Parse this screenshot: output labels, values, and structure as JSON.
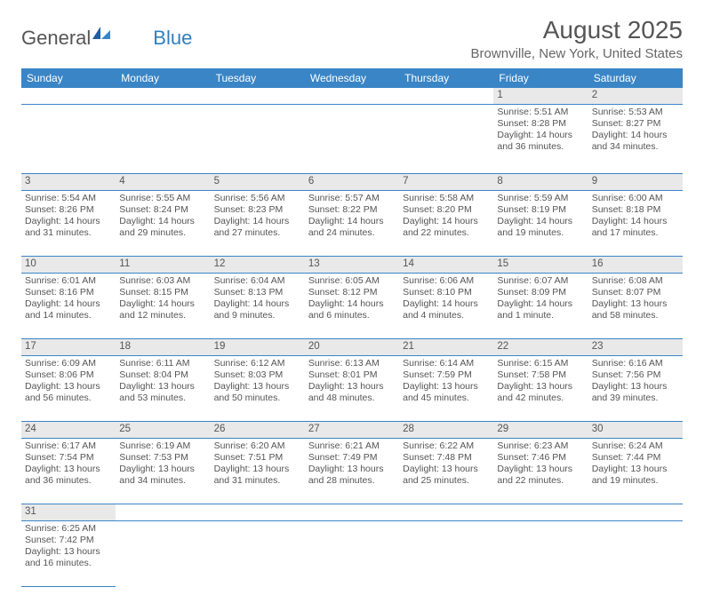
{
  "logo": {
    "part1": "General",
    "part2": "Blue"
  },
  "title": "August 2025",
  "subtitle": "Brownville, New York, United States",
  "day_headers": [
    "Sunday",
    "Monday",
    "Tuesday",
    "Wednesday",
    "Thursday",
    "Friday",
    "Saturday"
  ],
  "colors": {
    "header_bg": "#3a85c6",
    "header_fg": "#ffffff",
    "daynum_bg": "#e9e9e9",
    "border": "#3a85c6",
    "text": "#555555",
    "logo_accent": "#2f7fbf"
  },
  "typography": {
    "title_fontsize": 28,
    "subtitle_fontsize": 15,
    "header_fontsize": 12,
    "cell_fontsize": 10.5
  },
  "weeks": [
    [
      null,
      null,
      null,
      null,
      null,
      {
        "n": "1",
        "sunrise": "Sunrise: 5:51 AM",
        "sunset": "Sunset: 8:28 PM",
        "daylight": "Daylight: 14 hours and 36 minutes."
      },
      {
        "n": "2",
        "sunrise": "Sunrise: 5:53 AM",
        "sunset": "Sunset: 8:27 PM",
        "daylight": "Daylight: 14 hours and 34 minutes."
      }
    ],
    [
      {
        "n": "3",
        "sunrise": "Sunrise: 5:54 AM",
        "sunset": "Sunset: 8:26 PM",
        "daylight": "Daylight: 14 hours and 31 minutes."
      },
      {
        "n": "4",
        "sunrise": "Sunrise: 5:55 AM",
        "sunset": "Sunset: 8:24 PM",
        "daylight": "Daylight: 14 hours and 29 minutes."
      },
      {
        "n": "5",
        "sunrise": "Sunrise: 5:56 AM",
        "sunset": "Sunset: 8:23 PM",
        "daylight": "Daylight: 14 hours and 27 minutes."
      },
      {
        "n": "6",
        "sunrise": "Sunrise: 5:57 AM",
        "sunset": "Sunset: 8:22 PM",
        "daylight": "Daylight: 14 hours and 24 minutes."
      },
      {
        "n": "7",
        "sunrise": "Sunrise: 5:58 AM",
        "sunset": "Sunset: 8:20 PM",
        "daylight": "Daylight: 14 hours and 22 minutes."
      },
      {
        "n": "8",
        "sunrise": "Sunrise: 5:59 AM",
        "sunset": "Sunset: 8:19 PM",
        "daylight": "Daylight: 14 hours and 19 minutes."
      },
      {
        "n": "9",
        "sunrise": "Sunrise: 6:00 AM",
        "sunset": "Sunset: 8:18 PM",
        "daylight": "Daylight: 14 hours and 17 minutes."
      }
    ],
    [
      {
        "n": "10",
        "sunrise": "Sunrise: 6:01 AM",
        "sunset": "Sunset: 8:16 PM",
        "daylight": "Daylight: 14 hours and 14 minutes."
      },
      {
        "n": "11",
        "sunrise": "Sunrise: 6:03 AM",
        "sunset": "Sunset: 8:15 PM",
        "daylight": "Daylight: 14 hours and 12 minutes."
      },
      {
        "n": "12",
        "sunrise": "Sunrise: 6:04 AM",
        "sunset": "Sunset: 8:13 PM",
        "daylight": "Daylight: 14 hours and 9 minutes."
      },
      {
        "n": "13",
        "sunrise": "Sunrise: 6:05 AM",
        "sunset": "Sunset: 8:12 PM",
        "daylight": "Daylight: 14 hours and 6 minutes."
      },
      {
        "n": "14",
        "sunrise": "Sunrise: 6:06 AM",
        "sunset": "Sunset: 8:10 PM",
        "daylight": "Daylight: 14 hours and 4 minutes."
      },
      {
        "n": "15",
        "sunrise": "Sunrise: 6:07 AM",
        "sunset": "Sunset: 8:09 PM",
        "daylight": "Daylight: 14 hours and 1 minute."
      },
      {
        "n": "16",
        "sunrise": "Sunrise: 6:08 AM",
        "sunset": "Sunset: 8:07 PM",
        "daylight": "Daylight: 13 hours and 58 minutes."
      }
    ],
    [
      {
        "n": "17",
        "sunrise": "Sunrise: 6:09 AM",
        "sunset": "Sunset: 8:06 PM",
        "daylight": "Daylight: 13 hours and 56 minutes."
      },
      {
        "n": "18",
        "sunrise": "Sunrise: 6:11 AM",
        "sunset": "Sunset: 8:04 PM",
        "daylight": "Daylight: 13 hours and 53 minutes."
      },
      {
        "n": "19",
        "sunrise": "Sunrise: 6:12 AM",
        "sunset": "Sunset: 8:03 PM",
        "daylight": "Daylight: 13 hours and 50 minutes."
      },
      {
        "n": "20",
        "sunrise": "Sunrise: 6:13 AM",
        "sunset": "Sunset: 8:01 PM",
        "daylight": "Daylight: 13 hours and 48 minutes."
      },
      {
        "n": "21",
        "sunrise": "Sunrise: 6:14 AM",
        "sunset": "Sunset: 7:59 PM",
        "daylight": "Daylight: 13 hours and 45 minutes."
      },
      {
        "n": "22",
        "sunrise": "Sunrise: 6:15 AM",
        "sunset": "Sunset: 7:58 PM",
        "daylight": "Daylight: 13 hours and 42 minutes."
      },
      {
        "n": "23",
        "sunrise": "Sunrise: 6:16 AM",
        "sunset": "Sunset: 7:56 PM",
        "daylight": "Daylight: 13 hours and 39 minutes."
      }
    ],
    [
      {
        "n": "24",
        "sunrise": "Sunrise: 6:17 AM",
        "sunset": "Sunset: 7:54 PM",
        "daylight": "Daylight: 13 hours and 36 minutes."
      },
      {
        "n": "25",
        "sunrise": "Sunrise: 6:19 AM",
        "sunset": "Sunset: 7:53 PM",
        "daylight": "Daylight: 13 hours and 34 minutes."
      },
      {
        "n": "26",
        "sunrise": "Sunrise: 6:20 AM",
        "sunset": "Sunset: 7:51 PM",
        "daylight": "Daylight: 13 hours and 31 minutes."
      },
      {
        "n": "27",
        "sunrise": "Sunrise: 6:21 AM",
        "sunset": "Sunset: 7:49 PM",
        "daylight": "Daylight: 13 hours and 28 minutes."
      },
      {
        "n": "28",
        "sunrise": "Sunrise: 6:22 AM",
        "sunset": "Sunset: 7:48 PM",
        "daylight": "Daylight: 13 hours and 25 minutes."
      },
      {
        "n": "29",
        "sunrise": "Sunrise: 6:23 AM",
        "sunset": "Sunset: 7:46 PM",
        "daylight": "Daylight: 13 hours and 22 minutes."
      },
      {
        "n": "30",
        "sunrise": "Sunrise: 6:24 AM",
        "sunset": "Sunset: 7:44 PM",
        "daylight": "Daylight: 13 hours and 19 minutes."
      }
    ],
    [
      {
        "n": "31",
        "sunrise": "Sunrise: 6:25 AM",
        "sunset": "Sunset: 7:42 PM",
        "daylight": "Daylight: 13 hours and 16 minutes."
      },
      null,
      null,
      null,
      null,
      null,
      null
    ]
  ]
}
